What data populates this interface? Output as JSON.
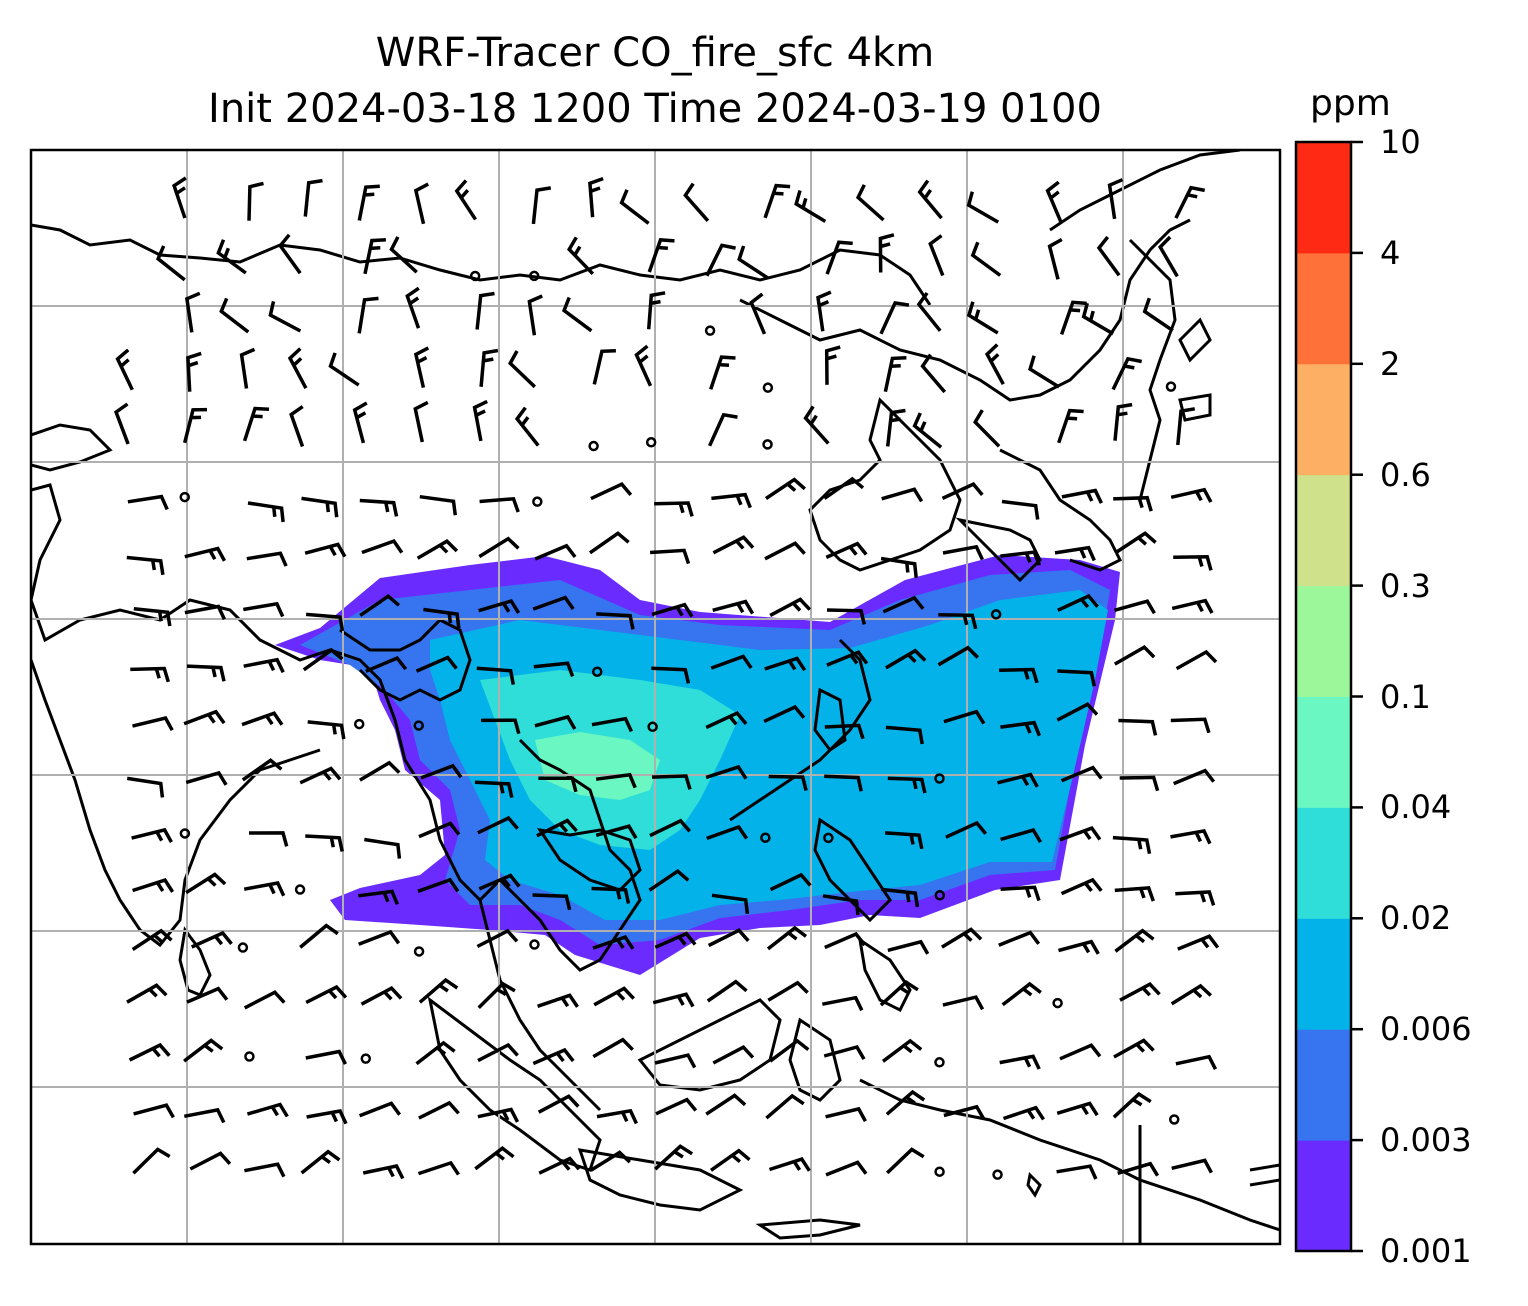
{
  "title": {
    "line1": "WRF-Tracer CO_fire_sfc 4km",
    "line2": "Init 2024-03-18 1200 Time 2024-03-19 0100"
  },
  "colorbar": {
    "unit": "ppm",
    "levels": [
      "0.001",
      "0.003",
      "0.006",
      "0.02",
      "0.04",
      "0.1",
      "0.3",
      "0.6",
      "2",
      "4",
      "10"
    ],
    "colors": [
      "#6a2bff",
      "#3674f0",
      "#04b2ea",
      "#2fded8",
      "#6bf7c1",
      "#9cf79b",
      "#cfe18a",
      "#fdb063",
      "#fe7138",
      "#ff2a14"
    ]
  },
  "map": {
    "grid": true,
    "coastline_color": "#000000",
    "gridline_color": "#b0b0b0",
    "field": "CO_fire_sfc",
    "overlay": "wind barbs"
  }
}
